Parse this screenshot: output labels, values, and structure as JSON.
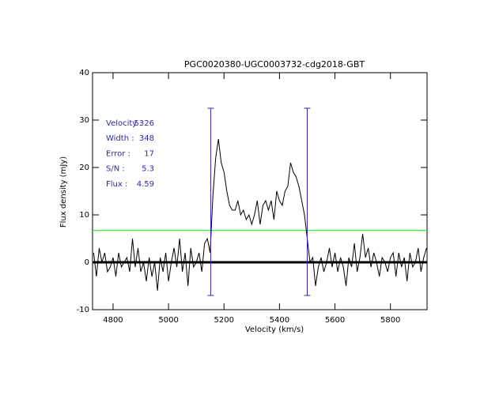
{
  "chart_data": {
    "type": "line",
    "title": "PGC0020380-UGC0003732-cdg2018-GBT",
    "x_label": "Velocity (km/s)",
    "y_label": "Flux density (mJy)",
    "xlim": [
      4726,
      5932
    ],
    "ylim": [
      -10,
      40
    ],
    "xticks": [
      4800,
      5000,
      5200,
      5400,
      5600,
      5800
    ],
    "yticks": [
      -10,
      0,
      10,
      20,
      30,
      40
    ],
    "color": "#000000",
    "x": [
      4730,
      4740,
      4750,
      4760,
      4770,
      4780,
      4790,
      4800,
      4810,
      4820,
      4830,
      4840,
      4850,
      4860,
      4870,
      4880,
      4890,
      4900,
      4910,
      4920,
      4930,
      4940,
      4950,
      4960,
      4970,
      4980,
      4990,
      5000,
      5010,
      5020,
      5030,
      5040,
      5050,
      5060,
      5070,
      5080,
      5090,
      5100,
      5110,
      5120,
      5130,
      5140,
      5150,
      5160,
      5170,
      5180,
      5190,
      5200,
      5210,
      5220,
      5230,
      5240,
      5250,
      5260,
      5270,
      5280,
      5290,
      5300,
      5310,
      5320,
      5330,
      5340,
      5350,
      5360,
      5370,
      5380,
      5390,
      5400,
      5410,
      5420,
      5430,
      5440,
      5450,
      5460,
      5470,
      5480,
      5490,
      5500,
      5510,
      5520,
      5530,
      5540,
      5550,
      5560,
      5570,
      5580,
      5590,
      5600,
      5610,
      5620,
      5630,
      5640,
      5650,
      5660,
      5670,
      5680,
      5690,
      5700,
      5710,
      5720,
      5730,
      5740,
      5750,
      5760,
      5770,
      5780,
      5790,
      5800,
      5810,
      5820,
      5830,
      5840,
      5850,
      5860,
      5870,
      5880,
      5890,
      5900,
      5910,
      5920,
      5930
    ],
    "values": [
      2,
      -3,
      3,
      0,
      2,
      -2,
      -1,
      1,
      -3,
      2,
      -1,
      0,
      1,
      -2,
      5,
      -1,
      3,
      -2,
      0,
      -4,
      1,
      -3,
      0,
      -6,
      1,
      -2,
      2,
      -4,
      0,
      3,
      -1,
      5,
      -2,
      2,
      -5,
      3,
      -1,
      0,
      2,
      -2,
      4,
      5,
      2,
      14,
      22,
      26,
      21,
      19,
      15,
      12,
      11,
      11,
      13,
      10,
      11,
      9,
      10,
      8,
      10,
      13,
      8,
      12,
      13,
      11,
      13,
      9,
      15,
      13,
      12,
      15,
      16,
      21,
      19,
      18,
      16,
      13,
      10,
      5,
      0,
      1,
      -5,
      -1,
      1,
      -2,
      0,
      3,
      -1,
      2,
      -2,
      1,
      -1,
      -5,
      1,
      -1,
      4,
      -2,
      1,
      6,
      1,
      3,
      -1,
      2,
      0,
      -3,
      1,
      0,
      -2,
      1,
      2,
      -3,
      2,
      -1,
      1,
      -4,
      2,
      -1,
      0,
      3,
      -2,
      1,
      3
    ],
    "marker_lines": {
      "x": [
        5152,
        5500
      ],
      "ylim": [
        -7,
        32.5
      ],
      "color": "#3a1fb5"
    },
    "threshold": {
      "value": 6.7,
      "color": "#00ee00"
    },
    "stats": [
      {
        "label": "Velocity :",
        "value": 5326
      },
      {
        "label": "Width :",
        "value": 348
      },
      {
        "label": "Error :",
        "value": 17
      },
      {
        "label": "S/N :",
        "value": 5.3
      },
      {
        "label": "Flux :",
        "value": 4.59
      }
    ]
  }
}
